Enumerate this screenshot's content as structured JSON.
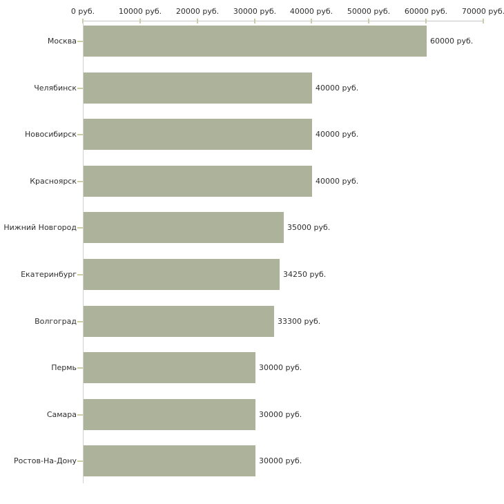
{
  "chart_data": {
    "type": "bar",
    "orientation": "horizontal",
    "title": "",
    "categories": [
      "Москва",
      "Челябинск",
      "Новосибирск",
      "Красноярск",
      "Нижний Новгород",
      "Екатеринбург",
      "Волгоград",
      "Пермь",
      "Самара",
      "Ростов-На-Дону"
    ],
    "values": [
      60000,
      40000,
      40000,
      40000,
      35000,
      34250,
      33300,
      30000,
      30000,
      30000
    ],
    "value_labels": [
      "60000 руб.",
      "40000 руб.",
      "40000 руб.",
      "40000 руб.",
      "35000 руб.",
      "34250 руб.",
      "33300 руб.",
      "30000 руб.",
      "30000 руб.",
      "30000 руб."
    ],
    "x_axis": {
      "position": "top",
      "range": [
        0,
        70000
      ],
      "tick_values": [
        0,
        10000,
        20000,
        30000,
        40000,
        50000,
        60000,
        70000
      ],
      "tick_labels": [
        "0 руб.",
        "10000 руб.",
        "20000 руб.",
        "30000 руб.",
        "40000 руб.",
        "50000 руб.",
        "60000 руб.",
        "70000 руб."
      ],
      "unit": "руб."
    },
    "grid": false,
    "legend": "none",
    "colors": {
      "bar": "#adb29a",
      "axis_line": "#c6c6c6",
      "vertical_axis_line": "#d0d0ce",
      "tick": "#cdcda4",
      "text": "#2e2e2e",
      "background": "#ffffff"
    }
  }
}
